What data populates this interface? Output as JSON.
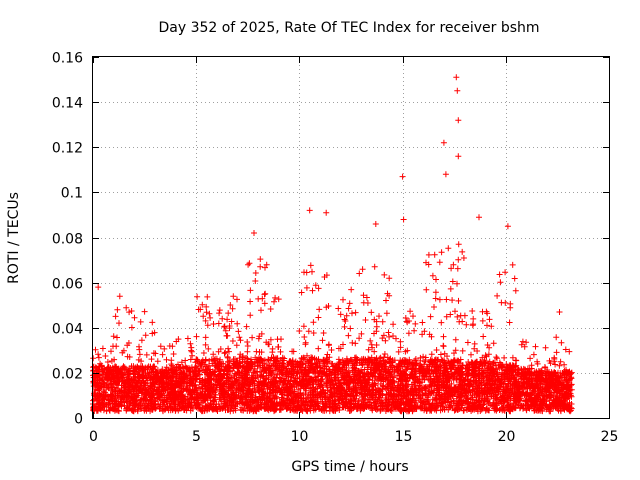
{
  "chart_data": {
    "type": "scatter",
    "title": "Day 352 of 2025, Rate Of TEC Index for receiver bshm",
    "xlabel": "GPS time / hours",
    "ylabel": "ROTI / TECUs",
    "xlim": [
      0,
      25
    ],
    "ylim": [
      0,
      0.16
    ],
    "x_ticks": [
      "0",
      "5",
      "10",
      "15",
      "20",
      "25"
    ],
    "y_ticks": [
      "0",
      "0.02",
      "0.04",
      "0.06",
      "0.08",
      "0.1",
      "0.12",
      "0.14",
      "0.16"
    ],
    "grid": true,
    "marker": "plus",
    "color": "#ff0000",
    "x_range_of_samples": [
      0,
      23.2
    ],
    "notable_points": [
      {
        "x": 0.25,
        "y": 0.058
      },
      {
        "x": 1.3,
        "y": 0.054
      },
      {
        "x": 7.8,
        "y": 0.082
      },
      {
        "x": 10.5,
        "y": 0.092
      },
      {
        "x": 11.3,
        "y": 0.091
      },
      {
        "x": 13.7,
        "y": 0.086
      },
      {
        "x": 15.0,
        "y": 0.107
      },
      {
        "x": 15.05,
        "y": 0.088
      },
      {
        "x": 17.0,
        "y": 0.122
      },
      {
        "x": 17.1,
        "y": 0.108
      },
      {
        "x": 17.6,
        "y": 0.151
      },
      {
        "x": 17.65,
        "y": 0.145
      },
      {
        "x": 17.7,
        "y": 0.132
      },
      {
        "x": 17.7,
        "y": 0.116
      },
      {
        "x": 18.7,
        "y": 0.089
      },
      {
        "x": 20.1,
        "y": 0.085
      },
      {
        "x": 22.6,
        "y": 0.047
      }
    ],
    "bands": [
      {
        "x0": 0.0,
        "x1": 1.0,
        "base": 0.012,
        "peak": 0.03
      },
      {
        "x0": 1.0,
        "x1": 2.0,
        "base": 0.012,
        "peak": 0.045
      },
      {
        "x0": 2.0,
        "x1": 3.0,
        "base": 0.012,
        "peak": 0.045
      },
      {
        "x0": 3.0,
        "x1": 4.0,
        "base": 0.011,
        "peak": 0.028
      },
      {
        "x0": 4.0,
        "x1": 5.0,
        "base": 0.012,
        "peak": 0.033
      },
      {
        "x0": 5.0,
        "x1": 6.0,
        "base": 0.015,
        "peak": 0.05
      },
      {
        "x0": 6.0,
        "x1": 7.0,
        "base": 0.016,
        "peak": 0.05
      },
      {
        "x0": 7.0,
        "x1": 7.5,
        "base": 0.016,
        "peak": 0.04
      },
      {
        "x0": 7.5,
        "x1": 8.5,
        "base": 0.016,
        "peak": 0.07
      },
      {
        "x0": 8.5,
        "x1": 9.5,
        "base": 0.016,
        "peak": 0.05
      },
      {
        "x0": 9.5,
        "x1": 10.0,
        "base": 0.015,
        "peak": 0.035
      },
      {
        "x0": 10.0,
        "x1": 11.5,
        "base": 0.016,
        "peak": 0.065
      },
      {
        "x0": 11.5,
        "x1": 12.5,
        "base": 0.015,
        "peak": 0.05
      },
      {
        "x0": 12.5,
        "x1": 14.5,
        "base": 0.016,
        "peak": 0.065
      },
      {
        "x0": 14.5,
        "x1": 16.0,
        "base": 0.015,
        "peak": 0.045
      },
      {
        "x0": 16.0,
        "x1": 18.0,
        "base": 0.015,
        "peak": 0.075
      },
      {
        "x0": 18.0,
        "x1": 19.5,
        "base": 0.014,
        "peak": 0.045
      },
      {
        "x0": 19.5,
        "x1": 20.5,
        "base": 0.013,
        "peak": 0.065
      },
      {
        "x0": 20.5,
        "x1": 21.5,
        "base": 0.011,
        "peak": 0.03
      },
      {
        "x0": 21.5,
        "x1": 22.5,
        "base": 0.01,
        "peak": 0.032
      },
      {
        "x0": 22.5,
        "x1": 23.2,
        "base": 0.01,
        "peak": 0.03
      }
    ]
  }
}
